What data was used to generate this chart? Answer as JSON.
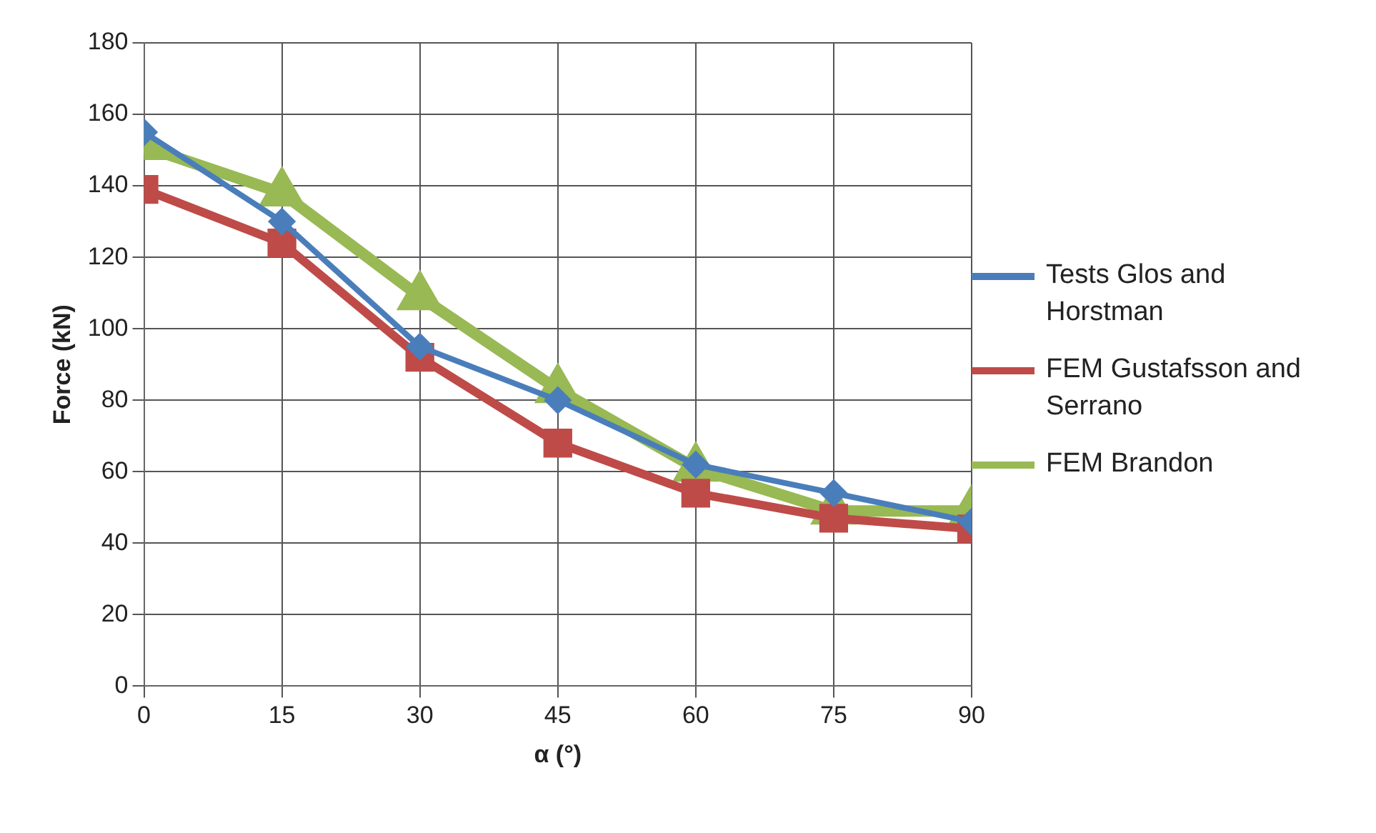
{
  "chart_data": {
    "type": "line",
    "xlabel": "α (°)",
    "ylabel": "Force (kN)",
    "x": [
      0,
      15,
      30,
      45,
      60,
      75,
      90
    ],
    "xlim": [
      0,
      90
    ],
    "xticks": [
      0,
      15,
      30,
      45,
      60,
      75,
      90
    ],
    "ylim": [
      0,
      180
    ],
    "yticks": [
      0,
      20,
      40,
      60,
      80,
      100,
      120,
      140,
      160,
      180
    ],
    "grid": true,
    "legend": "right",
    "line_style": "solid",
    "series": [
      {
        "name": "Tests Glos and Horstman",
        "color": "#4a7ebb",
        "marker": "diamond",
        "values": [
          155,
          130,
          95,
          80,
          62,
          54,
          46
        ]
      },
      {
        "name": "FEM Gustafsson and Serrano",
        "color": "#be4b48",
        "marker": "square",
        "values": [
          139,
          124,
          92,
          68,
          54,
          47,
          44
        ]
      },
      {
        "name": "FEM Brandon",
        "color": "#98b954",
        "marker": "triangle",
        "values": [
          151,
          138,
          109,
          83,
          61,
          49,
          49
        ]
      }
    ]
  }
}
